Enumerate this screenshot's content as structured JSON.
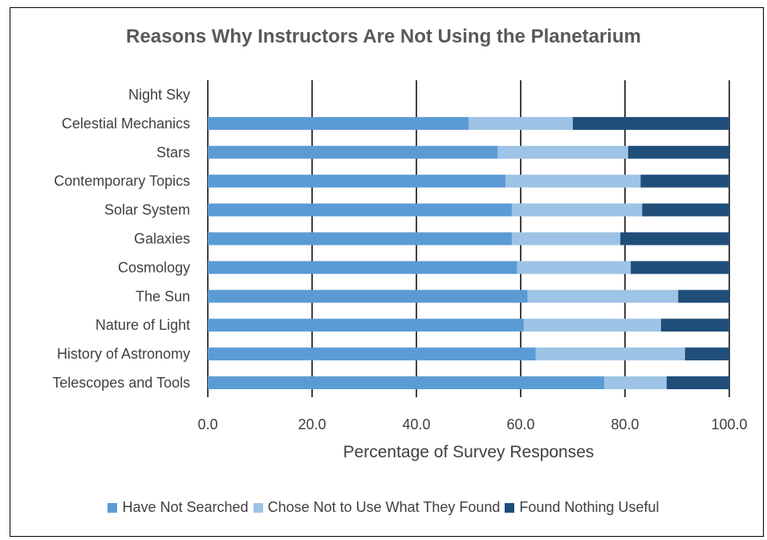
{
  "chart_data": {
    "type": "bar",
    "orientation": "horizontal",
    "stacked": true,
    "title": "Reasons Why Instructors Are Not Using the Planetarium",
    "xlabel": "Percentage of Survey Responses",
    "ylabel": "",
    "xlim": [
      0,
      100
    ],
    "x_ticks": [
      "0.0",
      "20.0",
      "40.0",
      "60.0",
      "80.0",
      "100.0"
    ],
    "grid": "vertical",
    "legend_position": "bottom",
    "categories": [
      "Night Sky",
      "Celestial Mechanics",
      "Stars",
      "Contemporary Topics",
      "Solar System",
      "Galaxies",
      "Cosmology",
      "The Sun",
      "Nature of Light",
      "History of Astronomy",
      "Telescopes and Tools"
    ],
    "series": [
      {
        "name": "Have Not Searched",
        "color": "#5b9bd5",
        "values": [
          0,
          50.0,
          55.6,
          57.1,
          58.3,
          58.3,
          59.3,
          61.3,
          60.6,
          62.9,
          76.0
        ]
      },
      {
        "name": "Chose Not to Use What They Found",
        "color": "#9dc3e6",
        "values": [
          0,
          20.0,
          25.0,
          25.9,
          25.0,
          20.8,
          21.8,
          28.9,
          26.3,
          28.6,
          12.0
        ]
      },
      {
        "name": "Found Nothing Useful",
        "color": "#1f4e79",
        "values": [
          0,
          30.0,
          19.4,
          17.0,
          16.7,
          20.9,
          18.9,
          9.8,
          13.1,
          8.5,
          12.0
        ]
      }
    ]
  }
}
